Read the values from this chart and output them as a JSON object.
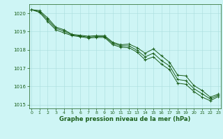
{
  "x": [
    0,
    1,
    2,
    3,
    4,
    5,
    6,
    7,
    8,
    9,
    10,
    11,
    12,
    13,
    14,
    15,
    16,
    17,
    18,
    19,
    20,
    21,
    22,
    23
  ],
  "line1": [
    1020.2,
    1020.15,
    1019.75,
    1019.25,
    1019.1,
    1018.85,
    1018.8,
    1018.75,
    1018.78,
    1018.78,
    1018.42,
    1018.28,
    1018.32,
    1018.12,
    1017.82,
    1018.05,
    1017.68,
    1017.32,
    1016.62,
    1016.58,
    1016.05,
    1015.78,
    1015.42,
    1015.58
  ],
  "line2": [
    1020.2,
    1020.1,
    1019.65,
    1019.18,
    1019.03,
    1018.82,
    1018.76,
    1018.7,
    1018.73,
    1018.73,
    1018.36,
    1018.22,
    1018.22,
    1017.98,
    1017.62,
    1017.82,
    1017.42,
    1017.12,
    1016.38,
    1016.32,
    1015.88,
    1015.6,
    1015.32,
    1015.52
  ],
  "line3": [
    1020.2,
    1020.05,
    1019.55,
    1019.1,
    1018.93,
    1018.78,
    1018.72,
    1018.65,
    1018.68,
    1018.68,
    1018.28,
    1018.15,
    1018.12,
    1017.88,
    1017.45,
    1017.62,
    1017.22,
    1016.92,
    1016.18,
    1016.12,
    1015.72,
    1015.42,
    1015.22,
    1015.45
  ],
  "line_color": "#1a5e1a",
  "bg_color": "#cef5f5",
  "grid_color": "#aadddd",
  "xlabel": "Graphe pression niveau de la mer (hPa)",
  "xlabel_color": "#1a5e1a",
  "tick_color": "#1a5e1a",
  "ylim": [
    1014.8,
    1020.5
  ],
  "yticks": [
    1015,
    1016,
    1017,
    1018,
    1019,
    1020
  ],
  "xticks": [
    0,
    1,
    2,
    3,
    4,
    5,
    6,
    7,
    8,
    9,
    10,
    11,
    12,
    13,
    14,
    15,
    16,
    17,
    18,
    19,
    20,
    21,
    22,
    23
  ]
}
